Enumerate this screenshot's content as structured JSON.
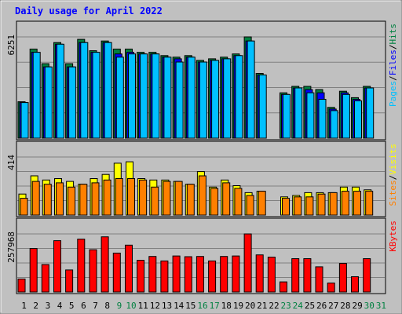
{
  "chart_data": {
    "type": "bar",
    "title": "Daily usage for April 2022",
    "days": [
      "1",
      "2",
      "3",
      "4",
      "5",
      "6",
      "7",
      "8",
      "9",
      "10",
      "11",
      "12",
      "13",
      "14",
      "15",
      "16",
      "17",
      "18",
      "19",
      "20",
      "21",
      "22",
      "23",
      "24",
      "25",
      "26",
      "27",
      "28",
      "29",
      "30",
      "31"
    ],
    "weekend_days": [
      "9",
      "10",
      "16",
      "17",
      "23",
      "24",
      "30",
      "31"
    ],
    "panels": [
      {
        "id": "hits",
        "ymax_label": "6251",
        "ymax": 6251,
        "legend": [
          "Pages",
          "/",
          "Files",
          "/",
          "Hits"
        ],
        "legend_colors": [
          "#00c0ff",
          "#000000",
          "#0000ff",
          "#000000",
          "#008040"
        ],
        "series": [
          {
            "name": "Hits",
            "color": "#008040",
            "values": [
              2250,
              5500,
              4600,
              5900,
              4600,
              6100,
              5400,
              6000,
              5500,
              5500,
              5300,
              5300,
              5100,
              5000,
              5100,
              4800,
              4900,
              5000,
              5200,
              6250,
              4000,
              0,
              2800,
              3200,
              3200,
              3000,
              1900,
              2900,
              2500,
              3200,
              0
            ]
          },
          {
            "name": "Files",
            "color": "#0000ff",
            "values": [
              2200,
              5300,
              4400,
              5800,
              4400,
              5900,
              5300,
              5900,
              5200,
              5300,
              5200,
              5200,
              5000,
              4900,
              5000,
              4700,
              4800,
              4900,
              5100,
              6000,
              3900,
              0,
              2700,
              3100,
              3000,
              2800,
              1800,
              2800,
              2400,
              3100,
              0
            ]
          },
          {
            "name": "Pages",
            "color": "#00c0ff",
            "values": [
              2200,
              5300,
              4400,
              5800,
              4400,
              5900,
              5300,
              5900,
              5000,
              5200,
              5200,
              5200,
              5000,
              4700,
              5000,
              4700,
              4800,
              4900,
              5100,
              6000,
              3900,
              0,
              2700,
              3100,
              2800,
              2400,
              1700,
              2700,
              2300,
              3100,
              0
            ]
          }
        ]
      },
      {
        "id": "visits",
        "ymax_label": "414",
        "ymax": 414,
        "legend": [
          "Sites",
          "/",
          "Visits"
        ],
        "legend_colors": [
          "#ff8000",
          "#000000",
          "#ffff00"
        ],
        "series": [
          {
            "name": "Visits",
            "color": "#ffff00",
            "values": [
              150,
              280,
              250,
              260,
              240,
              220,
              260,
              290,
              370,
              380,
              260,
              250,
              250,
              240,
              220,
              310,
              200,
              250,
              210,
              160,
              170,
              0,
              130,
              140,
              160,
              160,
              160,
              200,
              200,
              180,
              0
            ]
          },
          {
            "name": "Sites",
            "color": "#ff8000",
            "values": [
              120,
              240,
              220,
              230,
              200,
              220,
              230,
              250,
              260,
              260,
              250,
              200,
              240,
              240,
              220,
              280,
              190,
              230,
              190,
              140,
              170,
              0,
              120,
              130,
              130,
              150,
              160,
              170,
              170,
              170,
              0
            ]
          }
        ]
      },
      {
        "id": "kbytes",
        "ymax_label": "257968",
        "ymax": 257968,
        "legend": [
          "KBytes"
        ],
        "legend_colors": [
          "#ff0000"
        ],
        "series": [
          {
            "name": "KBytes",
            "color": "#ff0000",
            "values": [
              58000,
              193000,
              122000,
              228000,
              98000,
              235000,
              188000,
              245000,
              173000,
              208000,
              141000,
              158000,
              138000,
              160000,
              157000,
              158000,
              138000,
              158000,
              160000,
              257968,
              165000,
              155000,
              45000,
              148000,
              148000,
              112000,
              40000,
              127000,
              68000,
              148000,
              0
            ]
          }
        ]
      }
    ]
  }
}
